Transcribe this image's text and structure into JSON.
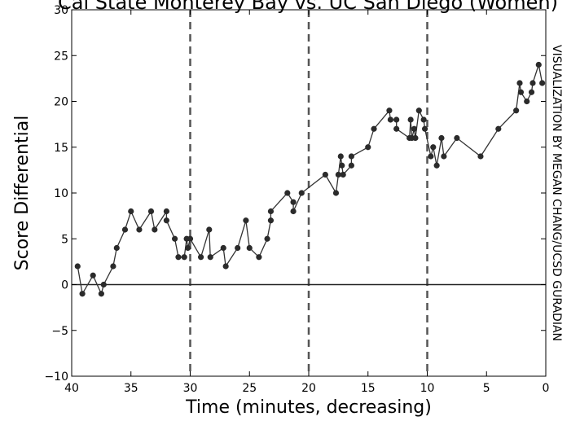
{
  "chart_data": {
    "type": "line",
    "title": "Cal State Monterey Bay vs. UC San Diego (Women)",
    "xlabel": "Time (minutes, decreasing)",
    "ylabel": "Score Differential",
    "side_label": "VISUALIZATION BY MEGAN CHANG/UCSD GURADIAN",
    "xlim": [
      40,
      0
    ],
    "ylim": [
      -10,
      30
    ],
    "x_ticks": [
      40,
      35,
      30,
      25,
      20,
      15,
      10,
      5,
      0
    ],
    "y_ticks": [
      -10,
      -5,
      0,
      5,
      10,
      15,
      20,
      25,
      30
    ],
    "y_tick_labels": [
      "−10",
      "−5",
      "0",
      "5",
      "10",
      "15",
      "20",
      "25",
      "30"
    ],
    "grid": false,
    "reference_lines": {
      "horizontal": [
        0
      ],
      "vertical_dashed": [
        30,
        20,
        10
      ]
    },
    "colors": {
      "line": "#333333",
      "marker": "#2b2b2b",
      "reference": "#555555"
    },
    "series": [
      {
        "x": [
          39.5,
          39.1,
          38.2,
          37.5,
          37.3,
          36.5,
          36.2,
          35.5,
          35.0,
          34.3,
          33.3,
          33.0,
          32.0,
          32.0,
          31.3,
          31.0,
          30.5,
          30.3,
          30.2,
          30.0,
          29.1,
          28.4,
          28.3,
          27.2,
          27.0,
          26.0,
          25.3,
          25.0,
          24.2,
          23.5,
          23.2,
          23.2,
          21.8,
          21.3,
          21.3,
          20.6,
          18.6,
          17.7,
          17.5,
          17.3,
          17.2,
          17.1,
          16.4,
          16.4,
          15.0,
          14.5,
          13.2,
          13.1,
          12.6,
          12.6,
          11.5,
          11.4,
          11.3,
          11.1,
          11.0,
          10.7,
          10.3,
          10.2,
          9.7,
          9.5,
          9.2,
          8.8,
          8.6,
          7.5,
          5.5,
          4.0,
          2.5,
          2.2,
          2.1,
          1.6,
          1.2,
          1.1,
          0.6,
          0.3
        ],
        "y": [
          2,
          -1,
          1,
          -1,
          0,
          2,
          4,
          6,
          8,
          6,
          8,
          6,
          8,
          7,
          5,
          3,
          3,
          5,
          4,
          5,
          3,
          6,
          3,
          4,
          2,
          4,
          7,
          4,
          3,
          5,
          7,
          8,
          10,
          9,
          8,
          10,
          12,
          10,
          12,
          14,
          13,
          12,
          13,
          14,
          15,
          17,
          19,
          18,
          18,
          17,
          16,
          18,
          16,
          17,
          16,
          19,
          18,
          17,
          14,
          15,
          13,
          16,
          14,
          16,
          14,
          17,
          19,
          22,
          21,
          20,
          21,
          22,
          24,
          22
        ]
      }
    ]
  }
}
